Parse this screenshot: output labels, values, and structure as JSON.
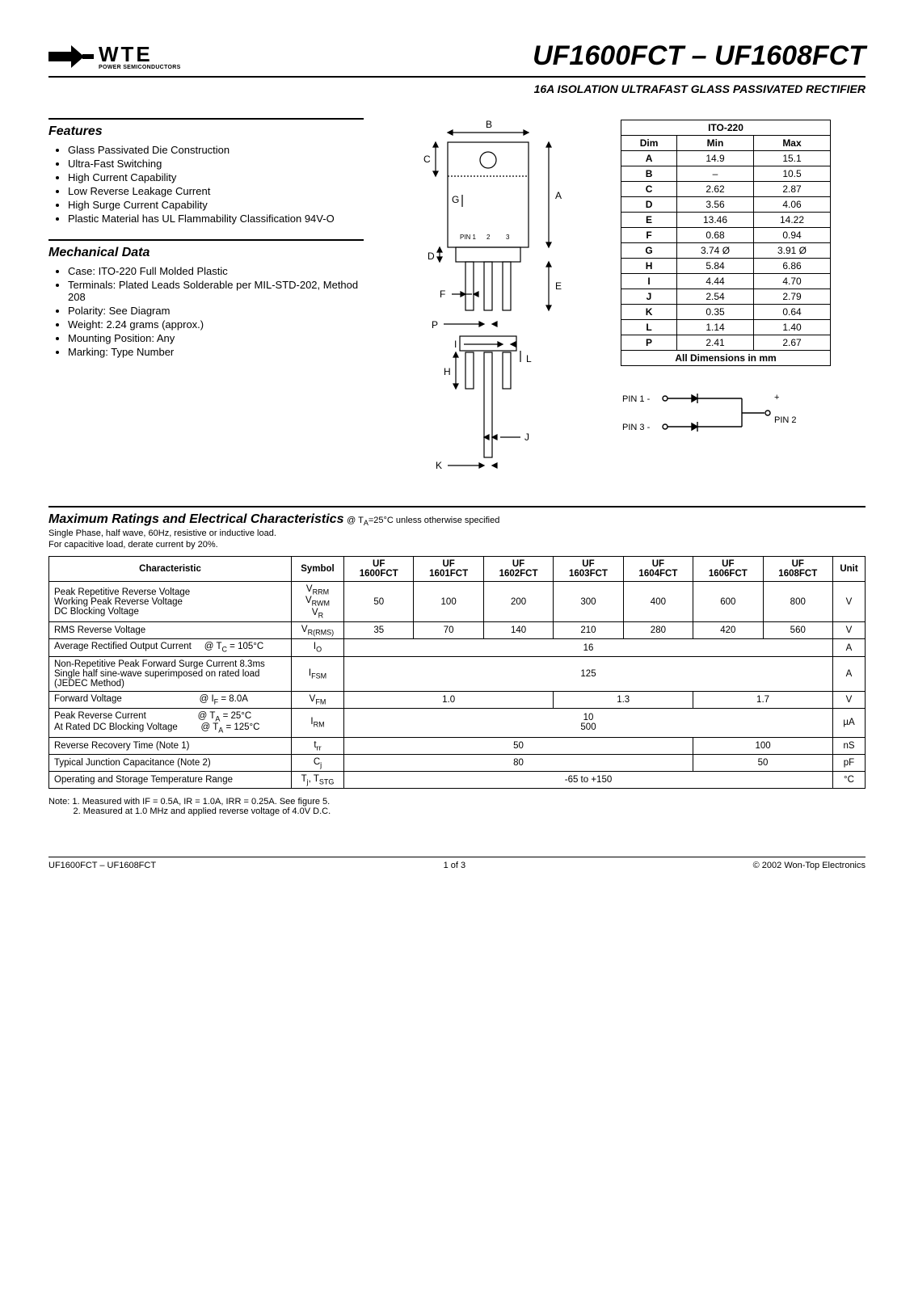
{
  "logo": {
    "wte": "WTE",
    "sub": "POWER SEMICONDUCTORS"
  },
  "title": "UF1600FCT – UF1608FCT",
  "subtitle": "16A ISOLATION ULTRAFAST GLASS PASSIVATED RECTIFIER",
  "features": {
    "heading": "Features",
    "items": [
      "Glass Passivated Die Construction",
      "Ultra-Fast Switching",
      "High Current Capability",
      "Low Reverse Leakage Current",
      "High Surge Current Capability",
      "Plastic Material has UL Flammability Classification 94V-O"
    ]
  },
  "mechanical": {
    "heading": "Mechanical Data",
    "items": [
      "Case: ITO-220 Full Molded Plastic",
      "Terminals: Plated Leads Solderable per MIL-STD-202, Method 208",
      "Polarity: See Diagram",
      "Weight: 2.24 grams (approx.)",
      "Mounting Position: Any",
      "Marking: Type Number"
    ]
  },
  "dim_labels": {
    "A": "A",
    "B": "B",
    "C": "C",
    "D": "D",
    "E": "E",
    "F": "F",
    "G": "G",
    "H": "H",
    "I": "I",
    "J": "J",
    "K": "K",
    "L": "L",
    "P": "P",
    "PIN1": "PIN 1",
    "p2": "2",
    "p3": "3"
  },
  "dims": {
    "title": "ITO-220",
    "head": {
      "dim": "Dim",
      "min": "Min",
      "max": "Max"
    },
    "rows": [
      {
        "d": "A",
        "min": "14.9",
        "max": "15.1"
      },
      {
        "d": "B",
        "min": "–",
        "max": "10.5"
      },
      {
        "d": "C",
        "min": "2.62",
        "max": "2.87"
      },
      {
        "d": "D",
        "min": "3.56",
        "max": "4.06"
      },
      {
        "d": "E",
        "min": "13.46",
        "max": "14.22"
      },
      {
        "d": "F",
        "min": "0.68",
        "max": "0.94"
      },
      {
        "d": "G",
        "min": "3.74 Ø",
        "max": "3.91 Ø"
      },
      {
        "d": "H",
        "min": "5.84",
        "max": "6.86"
      },
      {
        "d": "I",
        "min": "4.44",
        "max": "4.70"
      },
      {
        "d": "J",
        "min": "2.54",
        "max": "2.79"
      },
      {
        "d": "K",
        "min": "0.35",
        "max": "0.64"
      },
      {
        "d": "L",
        "min": "1.14",
        "max": "1.40"
      },
      {
        "d": "P",
        "min": "2.41",
        "max": "2.67"
      }
    ],
    "footer": "All Dimensions in mm"
  },
  "pins": {
    "pin1": "PIN 1 -",
    "pin3": "PIN 3 -",
    "plus": "+",
    "pin2": "PIN 2"
  },
  "ratings": {
    "heading": "Maximum Ratings and Electrical Characteristics",
    "cond": " @ T",
    "cond_sub": "A",
    "cond_tail": "=25°C unless otherwise specified",
    "line1": "Single Phase, half wave, 60Hz, resistive or inductive load.",
    "line2": "For capacitive load, derate current by 20%.",
    "head": {
      "char": "Characteristic",
      "sym": "Symbol",
      "p": [
        "UF 1600FCT",
        "UF 1601FCT",
        "UF 1602FCT",
        "UF 1603FCT",
        "UF 1604FCT",
        "UF 1606FCT",
        "UF 1608FCT"
      ],
      "unit": "Unit"
    },
    "rows": [
      {
        "char_html": "Peak Repetitive Reverse Voltage<br>Working Peak Reverse Voltage<br>DC Blocking Voltage",
        "sym_html": "V<span class='sub'>RRM</span><br>V<span class='sub'>RWM</span><br>V<span class='sub'>R</span>",
        "vals": [
          "50",
          "100",
          "200",
          "300",
          "400",
          "600",
          "800"
        ],
        "spans": [
          1,
          1,
          1,
          1,
          1,
          1,
          1
        ],
        "unit": "V"
      },
      {
        "char_html": "RMS Reverse Voltage",
        "sym_html": "V<span class='sub'>R(RMS)</span>",
        "vals": [
          "35",
          "70",
          "140",
          "210",
          "280",
          "420",
          "560"
        ],
        "spans": [
          1,
          1,
          1,
          1,
          1,
          1,
          1
        ],
        "unit": "V"
      },
      {
        "char_html": "Average Rectified Output Current &nbsp;&nbsp;&nbsp; @ T<span class='sub'>C</span> = 105°C",
        "sym_html": "I<span class='sub'>O</span>",
        "vals": [
          "16"
        ],
        "spans": [
          7
        ],
        "unit": "A"
      },
      {
        "char_html": "Non-Repetitive Peak Forward Surge Current 8.3ms<br>Single half sine-wave superimposed on rated load<br>(JEDEC Method)",
        "sym_html": "I<span class='sub'>FSM</span>",
        "vals": [
          "125"
        ],
        "spans": [
          7
        ],
        "unit": "A"
      },
      {
        "char_html": "Forward Voltage &nbsp;&nbsp;&nbsp;&nbsp;&nbsp;&nbsp;&nbsp;&nbsp;&nbsp;&nbsp;&nbsp;&nbsp;&nbsp;&nbsp;&nbsp;&nbsp;&nbsp;&nbsp;&nbsp;&nbsp;&nbsp;&nbsp;&nbsp;&nbsp;&nbsp;&nbsp;&nbsp;&nbsp; @ I<span class='sub'>F</span> = 8.0A",
        "sym_html": "V<span class='sub'>FM</span>",
        "vals": [
          "1.0",
          "1.3",
          "1.7"
        ],
        "spans": [
          3,
          2,
          2
        ],
        "unit": "V"
      },
      {
        "char_html": "Peak Reverse Current &nbsp;&nbsp;&nbsp;&nbsp;&nbsp;&nbsp;&nbsp;&nbsp;&nbsp;&nbsp;&nbsp;&nbsp;&nbsp;&nbsp;&nbsp;&nbsp;&nbsp;&nbsp; @ T<span class='sub'>A</span> = 25°C<br>At Rated DC Blocking Voltage &nbsp;&nbsp;&nbsp;&nbsp;&nbsp;&nbsp;&nbsp; @ T<span class='sub'>A</span> = 125°C",
        "sym_html": "I<span class='sub'>RM</span>",
        "vals": [
          "10<br>500"
        ],
        "spans": [
          7
        ],
        "unit": "µA"
      },
      {
        "char_html": "Reverse Recovery Time (Note 1)",
        "sym_html": "t<span class='sub'>rr</span>",
        "vals": [
          "50",
          "100"
        ],
        "spans": [
          5,
          2
        ],
        "unit": "nS"
      },
      {
        "char_html": "Typical Junction Capacitance (Note 2)",
        "sym_html": "C<span class='sub'>j</span>",
        "vals": [
          "80",
          "50"
        ],
        "spans": [
          5,
          2
        ],
        "unit": "pF"
      },
      {
        "char_html": "Operating and Storage Temperature Range",
        "sym_html": "T<span class='sub'>j</span>, T<span class='sub'>STG</span>",
        "vals": [
          "-65 to +150"
        ],
        "spans": [
          7
        ],
        "unit": "°C"
      }
    ]
  },
  "notes": {
    "n1": "Note:  1. Measured with IF = 0.5A, IR = 1.0A, IRR = 0.25A. See figure 5.",
    "n2": "          2. Measured at 1.0 MHz and applied reverse voltage of 4.0V D.C."
  },
  "footer": {
    "left": "UF1600FCT – UF1608FCT",
    "center": "1 of 3",
    "right": "© 2002 Won-Top Electronics"
  }
}
